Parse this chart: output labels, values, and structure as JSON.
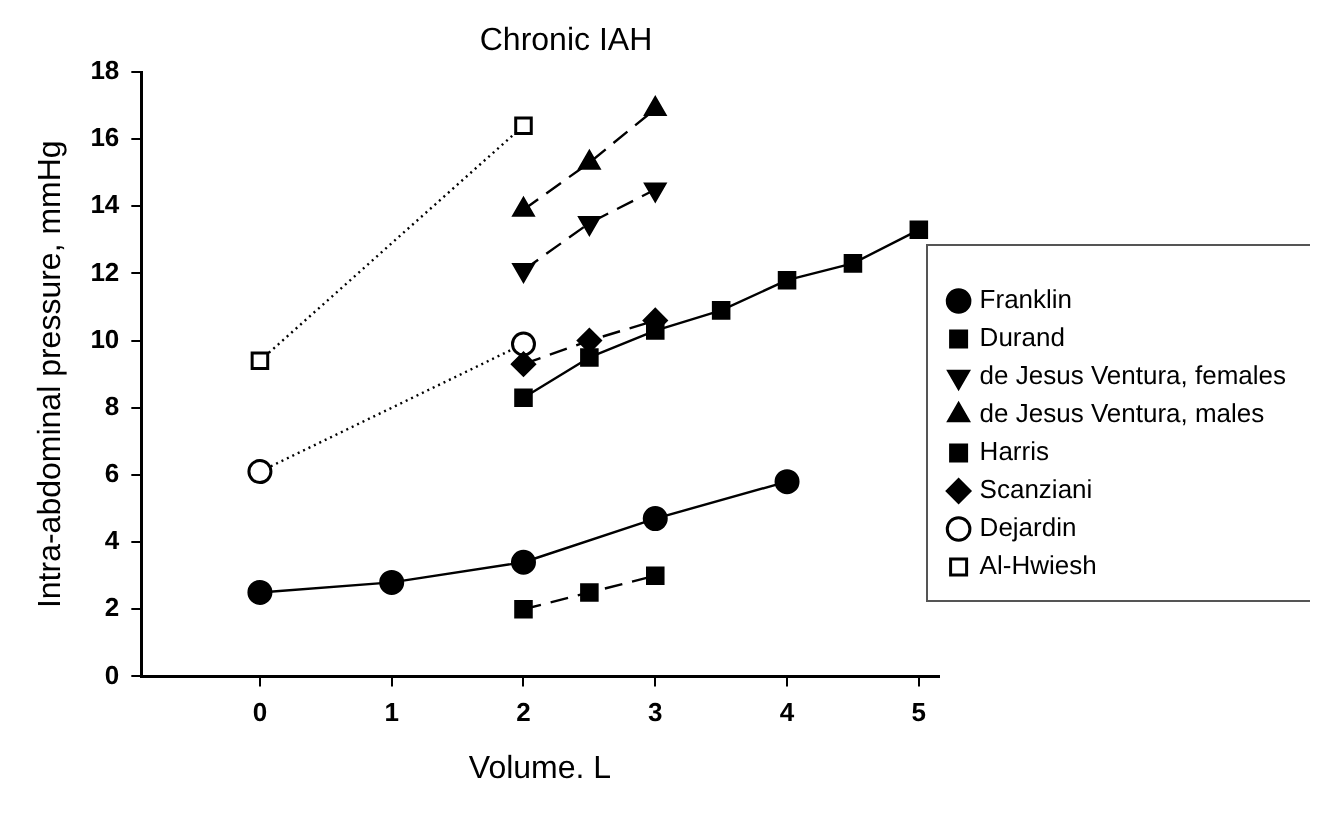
{
  "chart_data": {
    "type": "line",
    "title": "Chronic IAH",
    "xlabel": "Volume. L",
    "ylabel": "Intra-abdominal pressure, mmHg",
    "xlim": [
      -0.9,
      5.15
    ],
    "xticks": [
      0,
      1,
      2,
      3,
      4,
      5
    ],
    "ylim": [
      0,
      18
    ],
    "yticks": [
      0,
      2,
      4,
      6,
      8,
      10,
      12,
      14,
      16,
      18
    ],
    "grid": false,
    "legend": "right",
    "series": [
      {
        "name": "Franklin",
        "color": "#000000",
        "marker": "circle",
        "line_style": "solid",
        "x": [
          0,
          1,
          2,
          3,
          4
        ],
        "values": [
          2.5,
          2.8,
          3.4,
          4.7,
          5.8
        ]
      },
      {
        "name": "Durand",
        "color": "#000000",
        "marker": "square",
        "line_style": "solid",
        "x": [
          2,
          2.5,
          3,
          3.5,
          4,
          4.5,
          5
        ],
        "values": [
          8.3,
          9.5,
          10.3,
          10.9,
          11.8,
          12.3,
          13.3
        ]
      },
      {
        "name": "de Jesus Ventura, females",
        "color": "#000000",
        "marker": "triangle-down",
        "line_style": "dashed",
        "x": [
          2,
          2.5,
          3
        ],
        "values": [
          12.1,
          13.5,
          14.5
        ]
      },
      {
        "name": "de Jesus Ventura, males",
        "color": "#000000",
        "marker": "triangle",
        "line_style": "dashed",
        "x": [
          2,
          2.5,
          3
        ],
        "values": [
          13.9,
          15.3,
          16.9
        ]
      },
      {
        "name": "Harris",
        "color": "#000000",
        "marker": "square",
        "line_style": "dashed",
        "x": [
          2,
          2.5,
          3
        ],
        "values": [
          2.0,
          2.5,
          3.0
        ]
      },
      {
        "name": "Scanziani",
        "color": "#000000",
        "marker": "diamond",
        "line_style": "dashed",
        "x": [
          2,
          2.5,
          3
        ],
        "values": [
          9.3,
          10.0,
          10.6
        ]
      },
      {
        "name": "Dejardin",
        "color": "#000000",
        "marker": "circle-open",
        "line_style": "dotted",
        "x": [
          0,
          2
        ],
        "values": [
          6.1,
          9.9
        ]
      },
      {
        "name": "Al-Hwiesh",
        "color": "#000000",
        "marker": "square-open",
        "line_style": "dotted",
        "x": [
          0,
          2
        ],
        "values": [
          9.4,
          16.4
        ]
      }
    ]
  }
}
